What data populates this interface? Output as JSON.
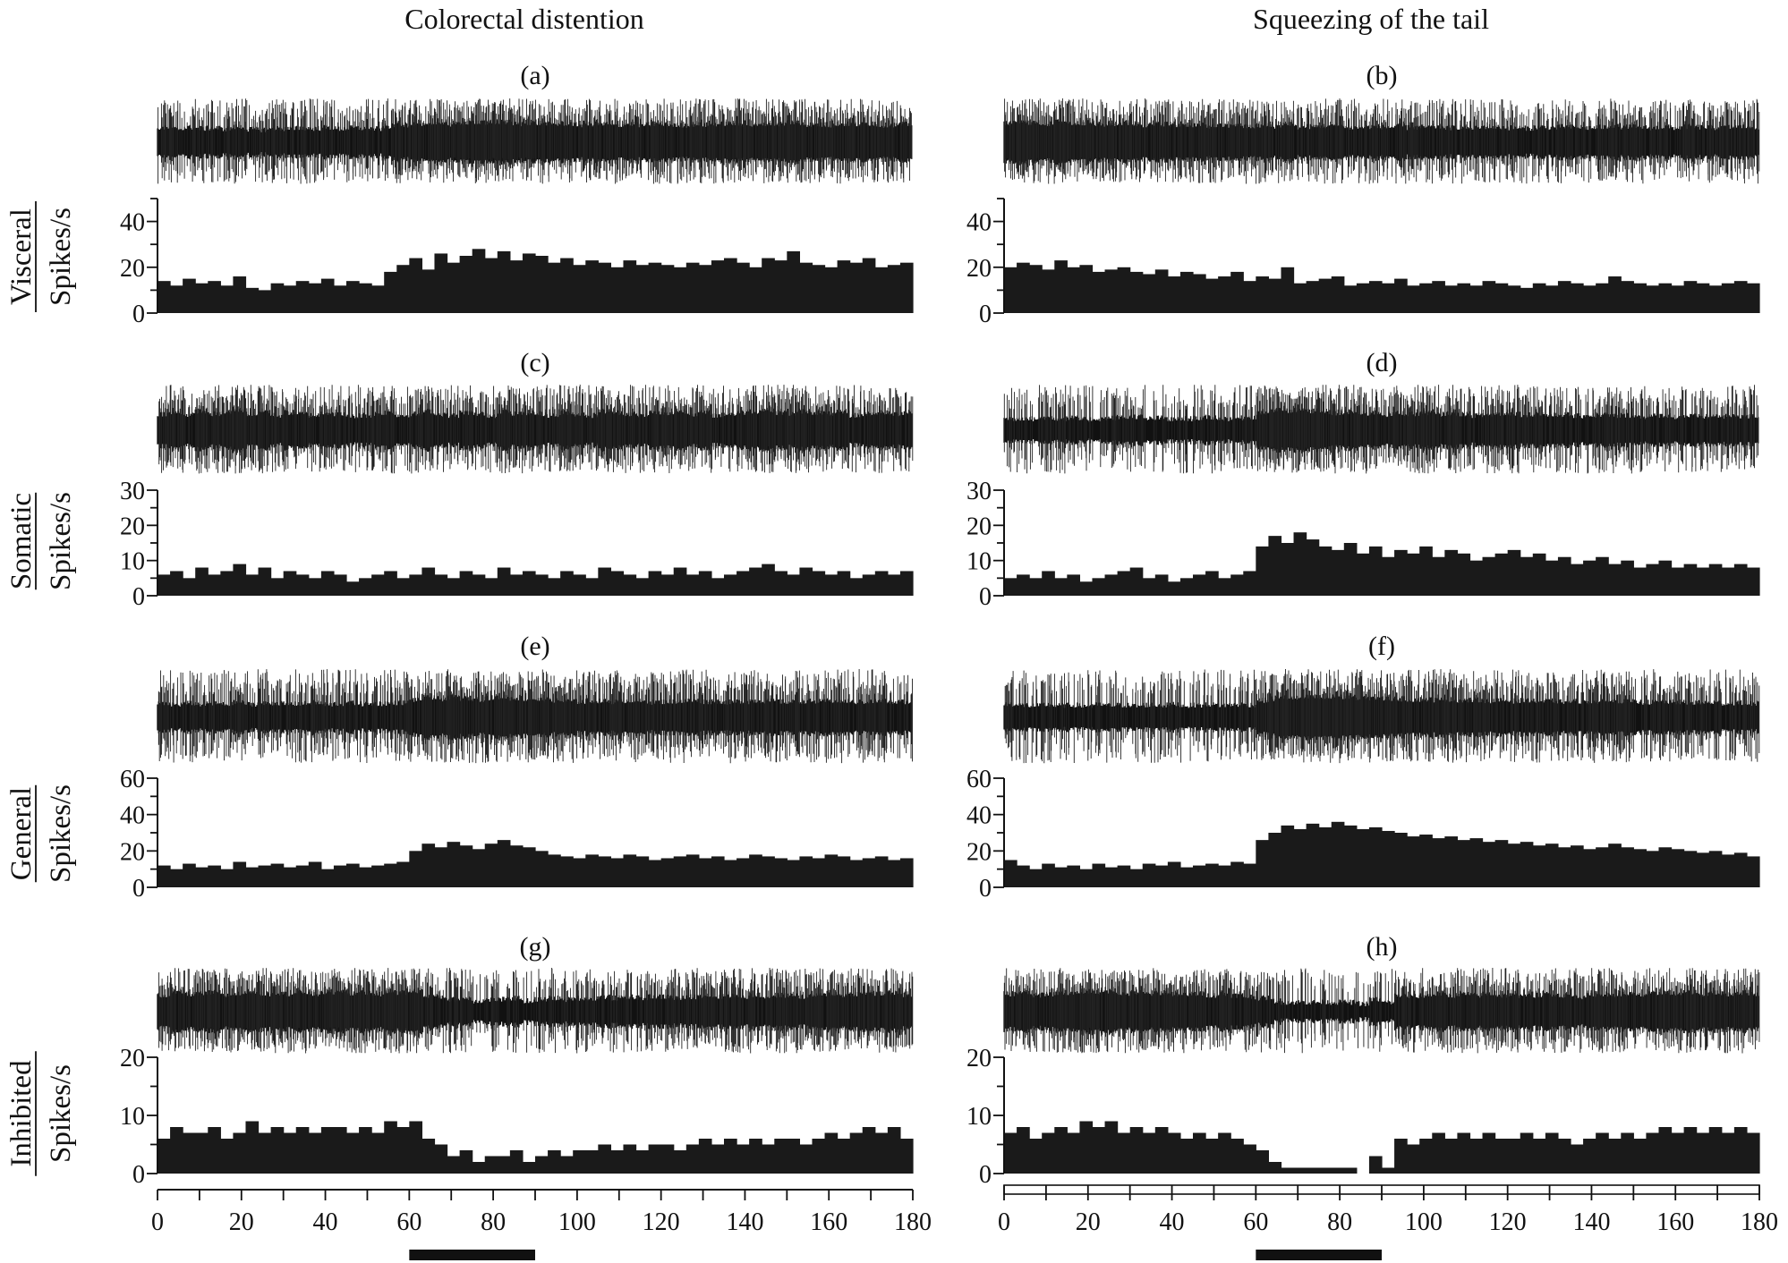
{
  "figure": {
    "columns": [
      {
        "title": "Colorectal distention",
        "stimulus": [
          60,
          90
        ]
      },
      {
        "title": "Squeezing of the tail",
        "stimulus": [
          60,
          90
        ]
      }
    ],
    "rows": [
      {
        "category": "Visceral",
        "ylabel": "Spikes/s"
      },
      {
        "category": "Somatic",
        "ylabel": "Spikes/s"
      },
      {
        "category": "General",
        "ylabel": "Spikes/s"
      },
      {
        "category": "Inhibited",
        "ylabel": "Spikes/s"
      }
    ],
    "x_ticks": [
      "0",
      "20",
      "40",
      "60",
      "80",
      "100",
      "120",
      "140",
      "160",
      "180"
    ]
  },
  "chart_data": [
    {
      "type": "bar",
      "panel": "(a)",
      "unit": "Visceral",
      "stimulus": "Colorectal distention",
      "stimulus_interval": [
        60,
        90
      ],
      "xlim": [
        0,
        180
      ],
      "ylim": [
        0,
        50
      ],
      "yticks": [
        "0",
        "20",
        "40"
      ],
      "ylabel": "Spikes/s",
      "bin_width": 3,
      "x": [
        0,
        3,
        6,
        9,
        12,
        15,
        18,
        21,
        24,
        27,
        30,
        33,
        36,
        39,
        42,
        45,
        48,
        51,
        54,
        57,
        60,
        63,
        66,
        69,
        72,
        75,
        78,
        81,
        84,
        87,
        90,
        93,
        96,
        99,
        102,
        105,
        108,
        111,
        114,
        117,
        120,
        123,
        126,
        129,
        132,
        135,
        138,
        141,
        144,
        147,
        150,
        153,
        156,
        159,
        162,
        165,
        168,
        171,
        174,
        177
      ],
      "values": [
        14,
        12,
        15,
        13,
        14,
        12,
        16,
        11,
        10,
        13,
        12,
        14,
        13,
        15,
        12,
        14,
        13,
        12,
        18,
        21,
        24,
        19,
        26,
        22,
        25,
        28,
        24,
        27,
        23,
        26,
        25,
        22,
        24,
        21,
        23,
        22,
        20,
        23,
        21,
        22,
        21,
        20,
        22,
        21,
        23,
        24,
        22,
        20,
        24,
        23,
        27,
        22,
        21,
        20,
        23,
        22,
        24,
        20,
        21,
        22
      ]
    },
    {
      "type": "bar",
      "panel": "(b)",
      "unit": "Visceral",
      "stimulus": "Squeezing of the tail",
      "stimulus_interval": [
        60,
        90
      ],
      "xlim": [
        0,
        180
      ],
      "ylim": [
        0,
        50
      ],
      "yticks": [
        "0",
        "20",
        "40"
      ],
      "ylabel": "Spikes/s",
      "bin_width": 3,
      "x": [
        0,
        3,
        6,
        9,
        12,
        15,
        18,
        21,
        24,
        27,
        30,
        33,
        36,
        39,
        42,
        45,
        48,
        51,
        54,
        57,
        60,
        63,
        66,
        69,
        72,
        75,
        78,
        81,
        84,
        87,
        90,
        93,
        96,
        99,
        102,
        105,
        108,
        111,
        114,
        117,
        120,
        123,
        126,
        129,
        132,
        135,
        138,
        141,
        144,
        147,
        150,
        153,
        156,
        159,
        162,
        165,
        168,
        171,
        174,
        177
      ],
      "values": [
        20,
        22,
        21,
        19,
        23,
        20,
        21,
        18,
        19,
        20,
        18,
        17,
        19,
        16,
        18,
        17,
        15,
        16,
        18,
        14,
        16,
        15,
        20,
        13,
        14,
        15,
        16,
        12,
        13,
        14,
        13,
        15,
        12,
        13,
        14,
        12,
        13,
        12,
        14,
        13,
        12,
        11,
        13,
        12,
        14,
        13,
        12,
        13,
        16,
        14,
        13,
        12,
        13,
        12,
        14,
        13,
        12,
        13,
        14,
        13
      ]
    },
    {
      "type": "bar",
      "panel": "(c)",
      "unit": "Somatic",
      "stimulus": "Colorectal distention",
      "stimulus_interval": [
        60,
        90
      ],
      "xlim": [
        0,
        180
      ],
      "ylim": [
        0,
        30
      ],
      "yticks": [
        "0",
        "10",
        "20",
        "30"
      ],
      "ylabel": "Spikes/s",
      "bin_width": 3,
      "x": [
        0,
        3,
        6,
        9,
        12,
        15,
        18,
        21,
        24,
        27,
        30,
        33,
        36,
        39,
        42,
        45,
        48,
        51,
        54,
        57,
        60,
        63,
        66,
        69,
        72,
        75,
        78,
        81,
        84,
        87,
        90,
        93,
        96,
        99,
        102,
        105,
        108,
        111,
        114,
        117,
        120,
        123,
        126,
        129,
        132,
        135,
        138,
        141,
        144,
        147,
        150,
        153,
        156,
        159,
        162,
        165,
        168,
        171,
        174,
        177
      ],
      "values": [
        6,
        7,
        5,
        8,
        6,
        7,
        9,
        6,
        8,
        5,
        7,
        6,
        5,
        7,
        6,
        4,
        5,
        6,
        7,
        5,
        6,
        8,
        6,
        5,
        7,
        6,
        5,
        8,
        6,
        7,
        6,
        5,
        7,
        6,
        5,
        8,
        7,
        6,
        5,
        7,
        6,
        8,
        6,
        7,
        5,
        6,
        7,
        8,
        9,
        7,
        6,
        8,
        7,
        6,
        7,
        5,
        6,
        7,
        6,
        7
      ]
    },
    {
      "type": "bar",
      "panel": "(d)",
      "unit": "Somatic",
      "stimulus": "Squeezing of the tail",
      "stimulus_interval": [
        60,
        90
      ],
      "xlim": [
        0,
        180
      ],
      "ylim": [
        0,
        30
      ],
      "yticks": [
        "0",
        "10",
        "20",
        "30"
      ],
      "ylabel": "Spikes/s",
      "bin_width": 3,
      "x": [
        0,
        3,
        6,
        9,
        12,
        15,
        18,
        21,
        24,
        27,
        30,
        33,
        36,
        39,
        42,
        45,
        48,
        51,
        54,
        57,
        60,
        63,
        66,
        69,
        72,
        75,
        78,
        81,
        84,
        87,
        90,
        93,
        96,
        99,
        102,
        105,
        108,
        111,
        114,
        117,
        120,
        123,
        126,
        129,
        132,
        135,
        138,
        141,
        144,
        147,
        150,
        153,
        156,
        159,
        162,
        165,
        168,
        171,
        174,
        177
      ],
      "values": [
        5,
        6,
        5,
        7,
        5,
        6,
        4,
        5,
        6,
        7,
        8,
        5,
        6,
        4,
        5,
        6,
        7,
        5,
        6,
        7,
        14,
        17,
        15,
        18,
        16,
        14,
        13,
        15,
        12,
        14,
        11,
        13,
        12,
        14,
        11,
        13,
        12,
        10,
        11,
        12,
        13,
        11,
        12,
        10,
        11,
        9,
        10,
        11,
        9,
        10,
        8,
        9,
        10,
        8,
        9,
        8,
        9,
        8,
        9,
        8
      ]
    },
    {
      "type": "bar",
      "panel": "(e)",
      "unit": "General",
      "stimulus": "Colorectal distention",
      "stimulus_interval": [
        60,
        90
      ],
      "xlim": [
        0,
        180
      ],
      "ylim": [
        0,
        60
      ],
      "yticks": [
        "0",
        "20",
        "40",
        "60"
      ],
      "ylabel": "Spikes/s",
      "bin_width": 3,
      "x": [
        0,
        3,
        6,
        9,
        12,
        15,
        18,
        21,
        24,
        27,
        30,
        33,
        36,
        39,
        42,
        45,
        48,
        51,
        54,
        57,
        60,
        63,
        66,
        69,
        72,
        75,
        78,
        81,
        84,
        87,
        90,
        93,
        96,
        99,
        102,
        105,
        108,
        111,
        114,
        117,
        120,
        123,
        126,
        129,
        132,
        135,
        138,
        141,
        144,
        147,
        150,
        153,
        156,
        159,
        162,
        165,
        168,
        171,
        174,
        177
      ],
      "values": [
        12,
        10,
        13,
        11,
        12,
        10,
        14,
        11,
        12,
        13,
        11,
        12,
        14,
        10,
        12,
        13,
        11,
        12,
        13,
        14,
        20,
        24,
        22,
        25,
        23,
        21,
        24,
        26,
        23,
        22,
        20,
        18,
        17,
        16,
        18,
        17,
        16,
        18,
        17,
        15,
        16,
        17,
        18,
        16,
        17,
        15,
        16,
        18,
        17,
        16,
        15,
        17,
        16,
        18,
        17,
        15,
        16,
        17,
        15,
        16
      ]
    },
    {
      "type": "bar",
      "panel": "(f)",
      "unit": "General",
      "stimulus": "Squeezing of the tail",
      "stimulus_interval": [
        60,
        90
      ],
      "xlim": [
        0,
        180
      ],
      "ylim": [
        0,
        60
      ],
      "yticks": [
        "0",
        "20",
        "40",
        "60"
      ],
      "ylabel": "Spikes/s",
      "bin_width": 3,
      "x": [
        0,
        3,
        6,
        9,
        12,
        15,
        18,
        21,
        24,
        27,
        30,
        33,
        36,
        39,
        42,
        45,
        48,
        51,
        54,
        57,
        60,
        63,
        66,
        69,
        72,
        75,
        78,
        81,
        84,
        87,
        90,
        93,
        96,
        99,
        102,
        105,
        108,
        111,
        114,
        117,
        120,
        123,
        126,
        129,
        132,
        135,
        138,
        141,
        144,
        147,
        150,
        153,
        156,
        159,
        162,
        165,
        168,
        171,
        174,
        177
      ],
      "values": [
        15,
        12,
        10,
        13,
        11,
        12,
        10,
        13,
        11,
        12,
        10,
        13,
        12,
        14,
        11,
        12,
        13,
        12,
        14,
        13,
        26,
        30,
        34,
        32,
        35,
        33,
        36,
        34,
        32,
        33,
        31,
        30,
        28,
        29,
        27,
        28,
        26,
        27,
        25,
        26,
        24,
        25,
        23,
        24,
        22,
        23,
        21,
        22,
        24,
        22,
        21,
        20,
        22,
        21,
        20,
        19,
        20,
        18,
        19,
        17
      ]
    },
    {
      "type": "bar",
      "panel": "(g)",
      "unit": "Inhibited",
      "stimulus": "Colorectal distention",
      "stimulus_interval": [
        60,
        90
      ],
      "xlim": [
        0,
        180
      ],
      "ylim": [
        0,
        20
      ],
      "yticks": [
        "0",
        "10",
        "20"
      ],
      "ylabel": "Spikes/s",
      "bin_width": 3,
      "x": [
        0,
        3,
        6,
        9,
        12,
        15,
        18,
        21,
        24,
        27,
        30,
        33,
        36,
        39,
        42,
        45,
        48,
        51,
        54,
        57,
        60,
        63,
        66,
        69,
        72,
        75,
        78,
        81,
        84,
        87,
        90,
        93,
        96,
        99,
        102,
        105,
        108,
        111,
        114,
        117,
        120,
        123,
        126,
        129,
        132,
        135,
        138,
        141,
        144,
        147,
        150,
        153,
        156,
        159,
        162,
        165,
        168,
        171,
        174,
        177
      ],
      "values": [
        6,
        8,
        7,
        7,
        8,
        6,
        7,
        9,
        7,
        8,
        7,
        8,
        7,
        8,
        8,
        7,
        8,
        7,
        9,
        8,
        9,
        6,
        5,
        3,
        4,
        2,
        3,
        3,
        4,
        2,
        3,
        4,
        3,
        4,
        4,
        5,
        4,
        5,
        4,
        5,
        5,
        4,
        5,
        6,
        5,
        6,
        5,
        6,
        5,
        6,
        6,
        5,
        6,
        7,
        6,
        7,
        8,
        7,
        8,
        6
      ]
    },
    {
      "type": "bar",
      "panel": "(h)",
      "unit": "Inhibited",
      "stimulus": "Squeezing of the tail",
      "stimulus_interval": [
        60,
        90
      ],
      "xlim": [
        0,
        180
      ],
      "ylim": [
        0,
        20
      ],
      "yticks": [
        "0",
        "10",
        "20"
      ],
      "ylabel": "Spikes/s",
      "bin_width": 3,
      "x": [
        0,
        3,
        6,
        9,
        12,
        15,
        18,
        21,
        24,
        27,
        30,
        33,
        36,
        39,
        42,
        45,
        48,
        51,
        54,
        57,
        60,
        63,
        66,
        69,
        72,
        75,
        78,
        81,
        84,
        87,
        90,
        93,
        96,
        99,
        102,
        105,
        108,
        111,
        114,
        117,
        120,
        123,
        126,
        129,
        132,
        135,
        138,
        141,
        144,
        147,
        150,
        153,
        156,
        159,
        162,
        165,
        168,
        171,
        174,
        177
      ],
      "values": [
        7,
        8,
        6,
        7,
        8,
        7,
        9,
        8,
        9,
        7,
        8,
        7,
        8,
        7,
        6,
        7,
        6,
        7,
        6,
        5,
        4,
        2,
        1,
        1,
        1,
        1,
        1,
        1,
        0,
        3,
        1,
        6,
        5,
        6,
        7,
        6,
        7,
        6,
        7,
        6,
        6,
        7,
        6,
        7,
        6,
        5,
        6,
        7,
        6,
        7,
        6,
        7,
        8,
        7,
        8,
        7,
        8,
        7,
        8,
        7
      ]
    }
  ]
}
